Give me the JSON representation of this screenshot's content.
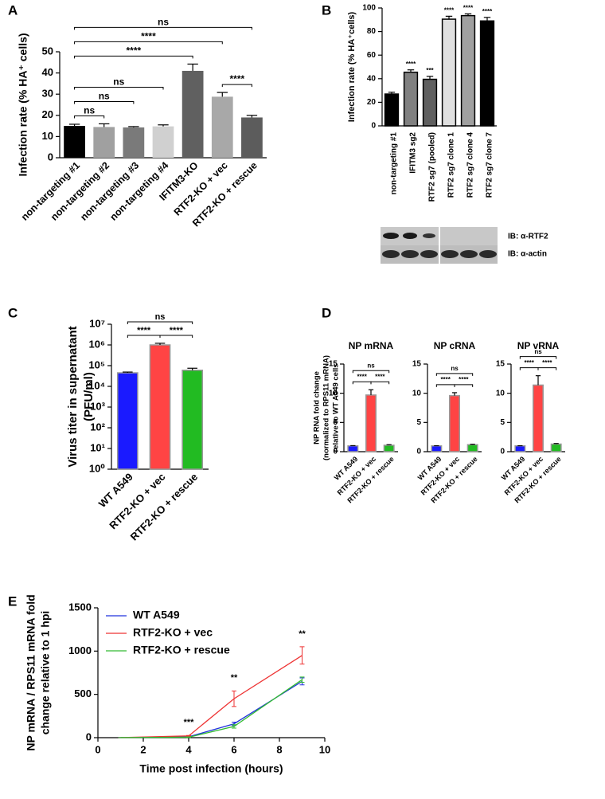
{
  "chart_data": [
    {
      "type": "bar",
      "panel": "A",
      "ylabel": "Infection rate (% HA⁺ cells)",
      "categories": [
        "non-targeting #1",
        "non-targeting #2",
        "non-targeting #3",
        "non-targeting #4",
        "IFITM3-KO",
        "RTF2-KO + vec",
        "RTF2-KO + rescue"
      ],
      "values": [
        15,
        14.5,
        14.3,
        14.8,
        41,
        28.8,
        19
      ],
      "errors": [
        0.8,
        1.5,
        0.4,
        0.7,
        3.2,
        2,
        1
      ],
      "colors": [
        "#000000",
        "#a0a0a0",
        "#7a7a7a",
        "#d0d0d0",
        "#606060",
        "#a8a8a8",
        "#5c5c5c"
      ],
      "ylim": [
        0,
        50
      ],
      "yticks": [
        0,
        10,
        20,
        30,
        40,
        50
      ],
      "brackets": [
        {
          "between": [
            "non-targeting #1",
            "non-targeting #2"
          ],
          "label": "ns"
        },
        {
          "between": [
            "RTF2-KO + vec",
            "RTF2-KO + rescue"
          ],
          "label": "****"
        },
        {
          "between": [
            "non-targeting #1",
            "non-targeting #3"
          ],
          "label": "ns"
        },
        {
          "between": [
            "non-targeting #1",
            "non-targeting #4"
          ],
          "label": "ns"
        },
        {
          "between": [
            "non-targeting #1",
            "IFITM3-KO"
          ],
          "label": "****"
        },
        {
          "between": [
            "non-targeting #1",
            "RTF2-KO + vec"
          ],
          "label": "****"
        },
        {
          "between": [
            "non-targeting #1",
            "RTF2-KO + rescue"
          ],
          "label": "ns"
        }
      ]
    },
    {
      "type": "bar",
      "panel": "B",
      "ylabel": "Infection rate (% HA⁺cells)",
      "categories": [
        "non-targeting #1",
        "IFITM3 sg2",
        "RTF2 sg7 (pooled)",
        "RTF2 sg7 clone 1",
        "RTF2 sg7 clone 4",
        "RTF2 sg7 clone 7"
      ],
      "values": [
        27,
        45.5,
        39.5,
        90.5,
        93.5,
        89
      ],
      "errors": [
        1.5,
        2,
        2.5,
        2.5,
        1.5,
        3
      ],
      "colors": [
        "#000000",
        "#808080",
        "#606060",
        "#e0e0e0",
        "#a0a0a0",
        "#000000"
      ],
      "edgecolor": "#000000",
      "ylim": [
        0,
        100
      ],
      "yticks": [
        0,
        20,
        40,
        60,
        80,
        100
      ],
      "bar_labels": [
        null,
        "****",
        "***",
        "****",
        "****",
        "****"
      ],
      "blot_labels": [
        "IB: α-RTF2",
        "IB: α-actin"
      ]
    },
    {
      "type": "bar",
      "panel": "C",
      "ylabel": [
        "Virus titer in supernatant",
        "(PFU/ml)"
      ],
      "log": true,
      "categories": [
        "WT A549",
        "RTF2-KO + vec",
        "RTF2-KO + rescue"
      ],
      "values": [
        45000,
        1000000,
        60000
      ],
      "errors": [
        4000,
        200000,
        15000
      ],
      "colors": [
        "#1a1aff",
        "#ff4444",
        "#22bb22"
      ],
      "edgecolor": "#999999",
      "ylim": [
        1,
        10000000
      ],
      "yticks": [
        {
          "value": 1,
          "label": "10⁰"
        },
        {
          "value": 10,
          "label": "10¹"
        },
        {
          "value": 100,
          "label": "10²"
        },
        {
          "value": 1000,
          "label": "10³"
        },
        {
          "value": 10000,
          "label": "10⁴"
        },
        {
          "value": 100000,
          "label": "10⁵"
        },
        {
          "value": 1000000,
          "label": "10⁶"
        },
        {
          "value": 10000000,
          "label": "10⁷"
        }
      ],
      "brackets": [
        {
          "between": [
            "WT A549",
            "RTF2-KO + vec"
          ],
          "label": "****"
        },
        {
          "between": [
            "RTF2-KO + vec",
            "RTF2-KO + rescue"
          ],
          "label": "****"
        },
        {
          "between": [
            "WT A549",
            "RTF2-KO + rescue"
          ],
          "label": "ns"
        }
      ]
    },
    {
      "type": "bar",
      "panel": "D",
      "title": "NP mRNA",
      "ylabel": [
        "NP RNA fold change",
        "(normalized to RPS11 mRNA)",
        "relative to  WT  A549 cells"
      ],
      "categories": [
        "WT A549",
        "RTF2-KO + vec",
        "RTF2-KO + rescue"
      ],
      "values": [
        1,
        9.7,
        1.1
      ],
      "errors": [
        0.03,
        0.9,
        0.1
      ],
      "colors": [
        "#1a1aff",
        "#ff4444",
        "#22bb22"
      ],
      "edgecolor": "#999999",
      "ylim": [
        0,
        15
      ],
      "yticks": [
        0,
        5,
        10,
        15
      ],
      "brackets": [
        {
          "between": [
            "WT A549",
            "RTF2-KO + vec"
          ],
          "label": "****"
        },
        {
          "between": [
            "RTF2-KO + vec",
            "RTF2-KO + rescue"
          ],
          "label": "****"
        },
        {
          "between": [
            "WT A549",
            "RTF2-KO + rescue"
          ],
          "label": "ns"
        }
      ]
    },
    {
      "type": "bar",
      "title": "NP cRNA",
      "categories": [
        "WT A549",
        "RTF2-KO + vec",
        "RTF2-KO + rescue"
      ],
      "values": [
        1,
        9.6,
        1.2
      ],
      "errors": [
        0.02,
        0.5,
        0.08
      ],
      "colors": [
        "#1a1aff",
        "#ff4444",
        "#22bb22"
      ],
      "edgecolor": "#999999",
      "ylim": [
        0,
        15
      ],
      "yticks": [
        0,
        5,
        10,
        15
      ],
      "brackets": [
        {
          "between": [
            "WT A549",
            "RTF2-KO + vec"
          ],
          "label": "****"
        },
        {
          "between": [
            "RTF2-KO + vec",
            "RTF2-KO + rescue"
          ],
          "label": "****"
        },
        {
          "between": [
            "WT A549",
            "RTF2-KO + rescue"
          ],
          "label": "ns"
        }
      ]
    },
    {
      "type": "bar",
      "title": "NP vRNA",
      "categories": [
        "WT A549",
        "RTF2-KO + vec",
        "RTF2-KO + rescue"
      ],
      "values": [
        1,
        11.4,
        1.3
      ],
      "errors": [
        0.02,
        1.6,
        0.1
      ],
      "colors": [
        "#1a1aff",
        "#ff4444",
        "#22bb22"
      ],
      "edgecolor": "#999999",
      "ylim": [
        0,
        15
      ],
      "yticks": [
        0,
        5,
        10,
        15
      ],
      "brackets": [
        {
          "between": [
            "WT A549",
            "RTF2-KO + vec"
          ],
          "label": "****"
        },
        {
          "between": [
            "RTF2-KO + vec",
            "RTF2-KO + rescue"
          ],
          "label": "****"
        },
        {
          "between": [
            "WT A549",
            "RTF2-KO + rescue"
          ],
          "label": "ns"
        }
      ]
    },
    {
      "type": "line",
      "panel": "E",
      "ylabel": [
        "NP mRNA / RPS11 mRNA fold",
        "change relative to 1 hpi"
      ],
      "xlabel": "Time post infection  (hours)",
      "x": [
        1,
        4,
        6,
        9
      ],
      "series": [
        {
          "name": "WT A549",
          "color": "#2233dd",
          "values": [
            1,
            10,
            160,
            650
          ],
          "errors": [
            0,
            3,
            20,
            40
          ]
        },
        {
          "name": "RTF2-KO + vec",
          "color": "#ee3333",
          "values": [
            1,
            20,
            450,
            950
          ],
          "errors": [
            0,
            5,
            90,
            100
          ]
        },
        {
          "name": "RTF2-KO + rescue",
          "color": "#33bb33",
          "values": [
            1,
            5,
            130,
            670
          ],
          "errors": [
            0,
            3,
            20,
            30
          ]
        }
      ],
      "xlim": [
        0,
        10
      ],
      "xticks": [
        0,
        2,
        4,
        6,
        8,
        10
      ],
      "ylim": [
        0,
        1500
      ],
      "yticks": [
        0,
        500,
        1000,
        1500
      ],
      "legend": "upper left",
      "annotations": [
        {
          "x": 4,
          "label": "***"
        },
        {
          "x": 6,
          "label": "**"
        },
        {
          "x": 9,
          "label": "**"
        }
      ]
    }
  ]
}
